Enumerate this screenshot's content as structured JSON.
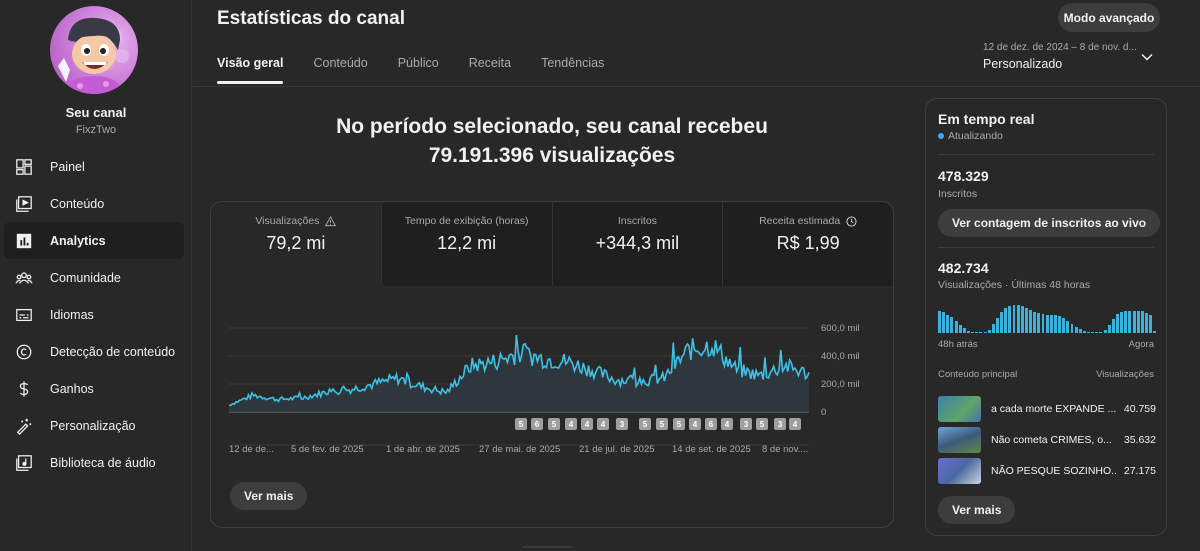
{
  "sidebar": {
    "channel_title": "Seu canal",
    "channel_handle": "FixzTwo",
    "items": [
      {
        "label": "Painel",
        "icon": "dashboard-icon"
      },
      {
        "label": "Conteúdo",
        "icon": "content-icon"
      },
      {
        "label": "Analytics",
        "icon": "analytics-icon",
        "active": true
      },
      {
        "label": "Comunidade",
        "icon": "community-icon"
      },
      {
        "label": "Idiomas",
        "icon": "subtitles-icon"
      },
      {
        "label": "Detecção de conteúdo",
        "icon": "copyright-icon"
      },
      {
        "label": "Ganhos",
        "icon": "dollar-icon"
      },
      {
        "label": "Personalização",
        "icon": "magic-wand-icon"
      },
      {
        "label": "Biblioteca de áudio",
        "icon": "audio-library-icon"
      }
    ]
  },
  "header": {
    "title": "Estatísticas do canal",
    "tabs": [
      {
        "label": "Visão geral",
        "active": true
      },
      {
        "label": "Conteúdo"
      },
      {
        "label": "Público"
      },
      {
        "label": "Receita"
      },
      {
        "label": "Tendências"
      }
    ],
    "advanced_button": "Modo avançado",
    "date_range": "12 de dez. de 2024 – 8 de nov. d...",
    "date_preset": "Personalizado"
  },
  "summary": {
    "line1": "No período selecionado, seu canal recebeu",
    "line2": "79.191.396 visualizações"
  },
  "metrics": [
    {
      "label": "Visualizações",
      "value": "79,2 mi",
      "icon": "warning-icon",
      "active": true
    },
    {
      "label": "Tempo de exibição (horas)",
      "value": "12,2 mi"
    },
    {
      "label": "Inscritos",
      "value": "+344,3 mil"
    },
    {
      "label": "Receita estimada",
      "value": "R$ 1,99",
      "icon": "clock-icon"
    }
  ],
  "chart_data": {
    "type": "area",
    "title": "Visualizações",
    "xlabel": "",
    "ylabel": "",
    "ylim": [
      0,
      600000
    ],
    "y_ticks": [
      "0",
      "200,0 mil",
      "400,0 mil",
      "600,0 mil"
    ],
    "x_ticks": [
      "12 de de...",
      "5 de fev. de 2025",
      "1 de abr. de 2025",
      "27 de mai. de 2025",
      "21 de jul. de 2025",
      "14 de set. de 2025",
      "8 de nov...."
    ],
    "grid": true,
    "line_color": "#3ea6ff",
    "x": [
      "2024-12-12",
      "2024-12-26",
      "2025-01-09",
      "2025-01-23",
      "2025-02-06",
      "2025-02-20",
      "2025-03-06",
      "2025-03-20",
      "2025-04-03",
      "2025-04-17",
      "2025-05-01",
      "2025-05-15",
      "2025-05-29",
      "2025-06-12",
      "2025-06-26",
      "2025-07-10",
      "2025-07-24",
      "2025-08-07",
      "2025-08-21",
      "2025-09-04",
      "2025-09-18",
      "2025-10-02",
      "2025-10-16",
      "2025-10-30",
      "2025-11-08"
    ],
    "values": [
      50000,
      120000,
      90000,
      100000,
      140000,
      160000,
      200000,
      240000,
      180000,
      140000,
      330000,
      360000,
      420000,
      380000,
      360000,
      300000,
      230000,
      220000,
      240000,
      440000,
      480000,
      300000,
      260000,
      330000,
      270000
    ],
    "markers": [
      "5",
      "6",
      "5",
      "4",
      "4",
      "4",
      "3",
      "5",
      "5",
      "5",
      "4",
      "6",
      "4",
      "3",
      "5",
      "3",
      "4"
    ],
    "more_button": "Ver mais"
  },
  "realtime": {
    "title": "Em tempo real",
    "status": "Atualizando",
    "subscribers_value": "478.329",
    "subscribers_label": "Inscritos",
    "live_count_button": "Ver contagem de inscritos ao vivo",
    "views_value": "482.734",
    "views_label": "Visualizações · Últimas 48 horas",
    "axis_start": "48h atrás",
    "axis_end": "Agora",
    "bars": [
      22,
      21,
      18,
      16,
      12,
      8,
      5,
      2,
      1,
      1,
      1,
      1,
      3,
      9,
      15,
      21,
      25,
      27,
      28,
      28,
      27,
      25,
      23,
      21,
      20,
      19,
      18,
      18,
      18,
      17,
      15,
      12,
      9,
      6,
      4,
      2,
      1,
      1,
      1,
      1,
      3,
      8,
      14,
      19,
      21,
      22,
      22,
      22,
      22,
      22,
      20,
      18,
      2
    ],
    "top_content_header": "Conteúdo principal",
    "top_content_views_header": "Visualizações",
    "top_content": [
      {
        "title": "a cada morte EXPANDE ...",
        "views": "40.759",
        "thumb": "#4a8fb5"
      },
      {
        "title": "Não cometa CRIMES, o...",
        "views": "35.632",
        "thumb": "#5a8fc8"
      },
      {
        "title": "NÃO PESQUE SOZINHO...",
        "views": "27.175",
        "thumb": "#6a7ab8"
      }
    ],
    "more_button": "Ver mais"
  }
}
